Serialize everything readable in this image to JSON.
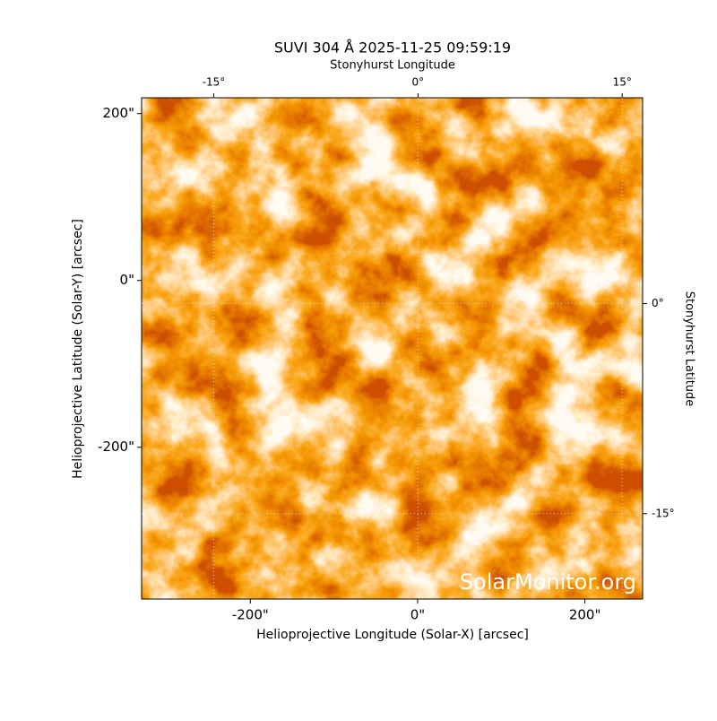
{
  "chart_data": {
    "type": "image",
    "title": "SUVI 304 Å 2025-11-25 09:59:19",
    "xlabel": "Helioprojective Longitude (Solar-X) [arcsec]",
    "ylabel": "Helioprojective Latitude (Solar-Y) [arcsec]",
    "x2label": "Stonyhurst Longitude",
    "y2label": "Stonyhurst Latitude",
    "watermark": "SolarMonitor.org",
    "xlim": [
      -330,
      269
    ],
    "ylim": [
      -382,
      219
    ],
    "xticks": [
      {
        "value": -200,
        "label": "-200\""
      },
      {
        "value": 0,
        "label": "0\""
      },
      {
        "value": 200,
        "label": "200\""
      }
    ],
    "yticks": [
      {
        "value": -200,
        "label": "-200\""
      },
      {
        "value": 0,
        "label": "0\""
      },
      {
        "value": 200,
        "label": "200\""
      }
    ],
    "x2lim": [
      -20.3,
      16.5
    ],
    "x2ticks": [
      {
        "value": -15,
        "label": "-15°"
      },
      {
        "value": 0,
        "label": "0°"
      },
      {
        "value": 15,
        "label": "15°"
      }
    ],
    "y2lim": [
      -21.1,
      14.7
    ],
    "y2ticks": [
      {
        "value": 0,
        "label": "0°"
      },
      {
        "value": -15,
        "label": "-15°"
      }
    ],
    "grid": true
  }
}
